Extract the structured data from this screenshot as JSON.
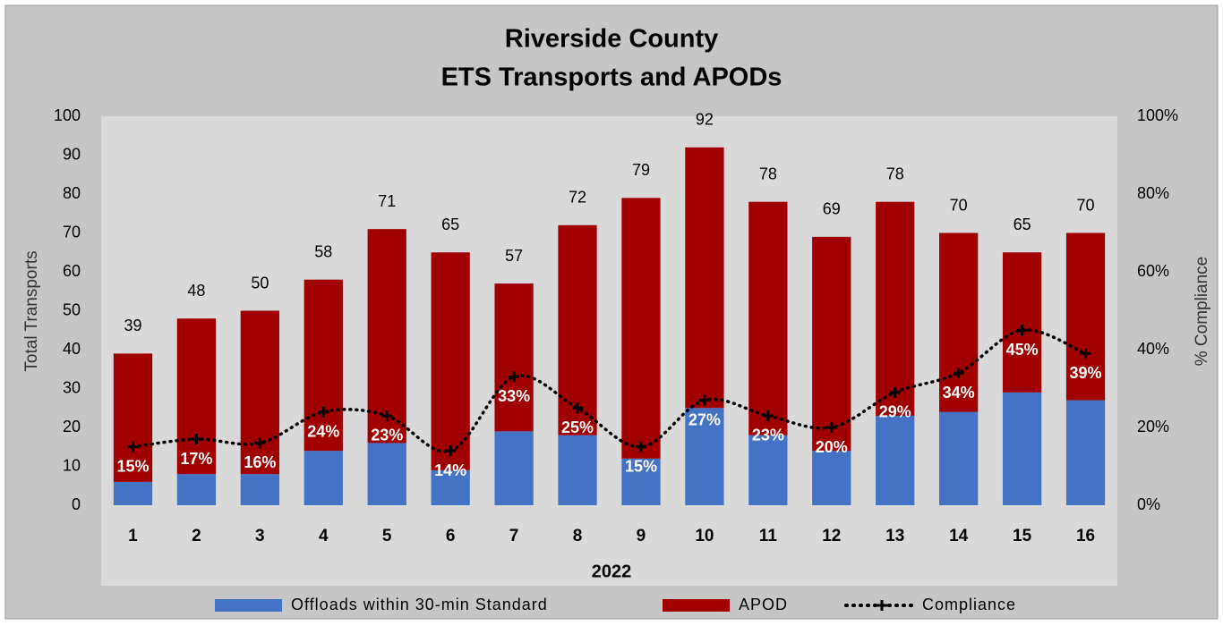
{
  "chart_data": {
    "type": "bar",
    "title": [
      "Riverside County",
      "ETS Transports and APODs"
    ],
    "x_label": "2022",
    "y_label": "Total Transports",
    "y2_label": "% Compliance",
    "categories": [
      "1",
      "2",
      "3",
      "4",
      "5",
      "6",
      "7",
      "8",
      "9",
      "10",
      "11",
      "12",
      "13",
      "14",
      "15",
      "16"
    ],
    "stacked": true,
    "series": [
      {
        "name": "Offloads within 30-min Standard",
        "color": "#4472c4",
        "values": [
          6,
          8,
          8,
          14,
          16,
          9,
          19,
          18,
          12,
          25,
          18,
          14,
          23,
          24,
          29,
          27
        ]
      },
      {
        "name": "APOD",
        "color": "#a00000",
        "values": [
          33,
          40,
          42,
          44,
          55,
          56,
          38,
          54,
          67,
          67,
          60,
          55,
          55,
          46,
          36,
          43
        ]
      },
      {
        "name": "Compliance",
        "color": "#000000",
        "axis": "y2",
        "type": "line",
        "values": [
          15,
          17,
          16,
          24,
          23,
          14,
          33,
          25,
          15,
          27,
          23,
          20,
          29,
          34,
          45,
          39
        ],
        "value_labels": [
          "15%",
          "17%",
          "16%",
          "24%",
          "23%",
          "14%",
          "33%",
          "25%",
          "15%",
          "27%",
          "23%",
          "20%",
          "29%",
          "34%",
          "45%",
          "39%"
        ]
      }
    ],
    "totals": [
      39,
      48,
      50,
      58,
      71,
      65,
      57,
      72,
      79,
      92,
      78,
      69,
      78,
      70,
      65,
      70
    ],
    "ylim": [
      0,
      100
    ],
    "yticks": [
      0,
      10,
      20,
      30,
      40,
      50,
      60,
      70,
      80,
      90,
      100
    ],
    "y2lim": [
      0,
      100
    ],
    "y2ticks": [
      {
        "value": 0,
        "label": "0%"
      },
      {
        "value": 20,
        "label": "20%"
      },
      {
        "value": 40,
        "label": "40%"
      },
      {
        "value": 60,
        "label": "60%"
      },
      {
        "value": 80,
        "label": "80%"
      },
      {
        "value": 100,
        "label": "100%"
      }
    ],
    "grid": false,
    "legend": "bottom"
  }
}
